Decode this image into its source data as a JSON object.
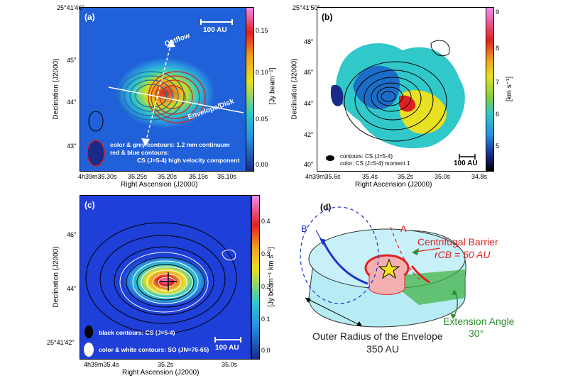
{
  "panel_a": {
    "label": "(a)",
    "dec_top": "25°41'46\"",
    "dec_ticks": [
      "45\"",
      "44\"",
      "43\""
    ],
    "ra_ticks": [
      "4h39m35.30s",
      "35.25s",
      "35.20s",
      "35.15s",
      "35.10s"
    ],
    "xlabel": "Right Ascension (J2000)",
    "ylabel": "Declination (J2000)",
    "scalebar": "100 AU",
    "outflow": "Outflow",
    "envelope": "Envelope/Disk",
    "legend1": "color & grey contours: 1.2 mm continuum",
    "legend2": "red & blue contours:",
    "legend3": "CS (J=5-4) high velocity component",
    "cb_label": "[Jy beam⁻¹]",
    "cb_ticks": [
      "0.15",
      "0.10",
      "0.05",
      "0.00"
    ]
  },
  "panel_b": {
    "label": "(b)",
    "dec_top": "25°41'50\"",
    "dec_ticks": [
      "48\"",
      "46\"",
      "44\"",
      "42\"",
      "40\""
    ],
    "ra_ticks": [
      "4h39m35.6s",
      "35.4s",
      "35.2s",
      "35.0s",
      "34.8s"
    ],
    "xlabel": "Right Ascension (J2000)",
    "ylabel": "Declination (J2000)",
    "legend1": "contours: CS (J=5-4)",
    "legend2": "color: CS (J=5-4) moment 1",
    "scalebar": "100 AU",
    "cb_label": "[km s⁻¹]",
    "cb_ticks": [
      "9",
      "8",
      "7",
      "6",
      "5"
    ]
  },
  "panel_c": {
    "label": "(c)",
    "dec_ticks": [
      "46\"",
      "44\"",
      "25°41'42\""
    ],
    "ra_ticks": [
      "4h39m35.4s",
      "35.2s",
      "35.0s"
    ],
    "xlabel": "Right Ascension (J2000)",
    "ylabel": "Declination (J2000)",
    "legend1": "black contours: CS (J=5-4)",
    "legend2": "color & white contours: SO (JN=76-65)",
    "scalebar": "100 AU",
    "cb_label": "[Jy beam⁻¹ km s⁻¹]",
    "cb_ticks": [
      "0.4",
      "0.3",
      "0.2",
      "0.1",
      "0.0"
    ]
  },
  "panel_d": {
    "label": "(d)",
    "label_a": "A",
    "label_b": "B",
    "cb_title": "Centrifugal Barrier",
    "cb_value": "rCB = 50 AU",
    "outer1": "Outer Radius of the Envelope",
    "outer2": "350 AU",
    "ext1": "Extension Angle",
    "ext2": "30°"
  },
  "colors": {
    "map_bg": "#1e3fd8",
    "contour_red": "#d42020",
    "contour_blue": "#1d6f9a",
    "diagram_red": "#e02020",
    "diagram_green": "#2e8b2e",
    "diagram_blue": "#2030d0"
  }
}
